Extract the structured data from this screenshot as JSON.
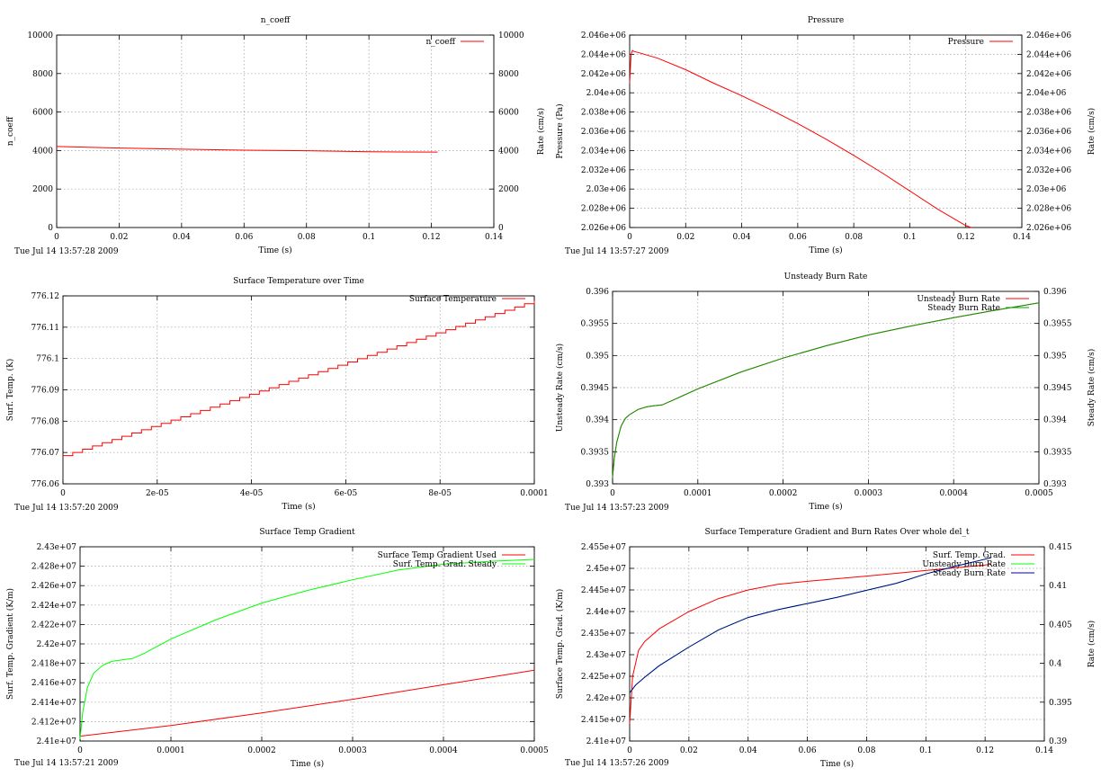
{
  "chart_data": [
    {
      "type": "line",
      "title": "n_coeff",
      "xlabel": "Time (s)",
      "ylabel": "n_coeff",
      "y2label": "Rate (cm/s)",
      "xlim": [
        0,
        0.14
      ],
      "ylim": [
        0,
        10000
      ],
      "y2lim": [
        0,
        10000
      ],
      "xticks": [
        "0",
        "0.02",
        "0.04",
        "0.06",
        "0.08",
        "0.1",
        "0.12",
        "0.14"
      ],
      "yticks": [
        "0",
        "2000",
        "4000",
        "6000",
        "8000",
        "10000"
      ],
      "y2ticks": [
        "0",
        "2000",
        "4000",
        "6000",
        "8000",
        "10000"
      ],
      "grid": true,
      "legend_position": "top-right",
      "timestamp": "Tue Jul 14 13:57:28 2009",
      "series": [
        {
          "name": "n_coeff",
          "color": "#ff0000",
          "axis": "y1",
          "x": [
            0,
            0.01,
            0.02,
            0.04,
            0.06,
            0.08,
            0.1,
            0.11,
            0.122
          ],
          "y": [
            4210,
            4170,
            4130,
            4070,
            4020,
            3990,
            3940,
            3925,
            3920
          ]
        }
      ]
    },
    {
      "type": "line",
      "title": "Pressure",
      "xlabel": "Time (s)",
      "ylabel": "Pressure (Pa)",
      "y2label": "Rate (cm/s)",
      "xlim": [
        0,
        0.14
      ],
      "ylim": [
        2026000,
        2046000
      ],
      "y2lim": [
        2026000,
        2046000
      ],
      "xticks": [
        "0",
        "0.02",
        "0.04",
        "0.06",
        "0.08",
        "0.1",
        "0.12",
        "0.14"
      ],
      "yticks": [
        "2.026e+06",
        "2.028e+06",
        "2.03e+06",
        "2.032e+06",
        "2.034e+06",
        "2.036e+06",
        "2.038e+06",
        "2.04e+06",
        "2.042e+06",
        "2.044e+06",
        "2.046e+06"
      ],
      "y2ticks": [
        "2.026e+06",
        "2.028e+06",
        "2.03e+06",
        "2.032e+06",
        "2.034e+06",
        "2.036e+06",
        "2.038e+06",
        "2.04e+06",
        "2.042e+06",
        "2.044e+06",
        "2.046e+06"
      ],
      "grid": true,
      "legend_position": "top-right",
      "timestamp": "Tue Jul 14 13:57:27 2009",
      "series": [
        {
          "name": "Pressure",
          "color": "#ff0000",
          "axis": "y1",
          "x": [
            0,
            0.0005,
            0.001,
            0.0015,
            0.003,
            0.01,
            0.02,
            0.03,
            0.04,
            0.05,
            0.06,
            0.07,
            0.08,
            0.09,
            0.1,
            0.11,
            0.12,
            0.122
          ],
          "y": [
            2041000,
            2044000,
            2044400,
            2044300,
            2044200,
            2043600,
            2042400,
            2041000,
            2039700,
            2038300,
            2036800,
            2035200,
            2033500,
            2031700,
            2029800,
            2027900,
            2026200,
            2026000
          ]
        }
      ]
    },
    {
      "type": "line",
      "title": "Surface Temperature over Time",
      "xlabel": "Time (s)",
      "ylabel": "Surf. Temp. (K)",
      "xlim": [
        0,
        0.0001
      ],
      "ylim": [
        776.06,
        776.12
      ],
      "xticks": [
        "0",
        "2e-05",
        "4e-05",
        "6e-05",
        "8e-05",
        "0.0001"
      ],
      "yticks": [
        "776.06",
        "776.07",
        "776.08",
        "776.09",
        "776.1",
        "776.11",
        "776.12"
      ],
      "grid": true,
      "legend_position": "top-right",
      "timestamp": "Tue Jul 14 13:57:20 2009",
      "series": [
        {
          "name": "Surface Temperature",
          "color": "#ff0000",
          "axis": "y1",
          "step": true,
          "x": [
            0,
            0.0001
          ],
          "y": [
            776.069,
            776.1185
          ]
        }
      ]
    },
    {
      "type": "line",
      "title": "Unsteady Burn Rate",
      "xlabel": "Time (s)",
      "ylabel": "Unsteady Rate (cm/s)",
      "y2label": "Steady Rate (cm/s)",
      "xlim": [
        0,
        0.0005
      ],
      "ylim": [
        0.393,
        0.396
      ],
      "y2lim": [
        0.393,
        0.396
      ],
      "xticks": [
        "0",
        "0.0001",
        "0.0002",
        "0.0003",
        "0.0004",
        "0.0005"
      ],
      "yticks": [
        "0.393",
        "0.3935",
        "0.394",
        "0.3945",
        "0.395",
        "0.3955",
        "0.396"
      ],
      "y2ticks": [
        "0.393",
        "0.3935",
        "0.394",
        "0.3945",
        "0.395",
        "0.3955",
        "0.396"
      ],
      "grid": true,
      "legend_position": "top-right",
      "timestamp": "Tue Jul 14 13:57:23 2009",
      "series": [
        {
          "name": "Unsteady Burn Rate",
          "color": "#ff0000",
          "axis": "y1",
          "x": [
            0,
            2e-06,
            5e-06,
            1e-05,
            1.5e-05,
            2e-05,
            3e-05,
            4e-05,
            5e-05,
            5.8e-05,
            7e-05,
            0.0001,
            0.00015,
            0.0002,
            0.00025,
            0.0003,
            0.00035,
            0.0004,
            0.00045,
            0.0005
          ],
          "y": [
            0.3931,
            0.3934,
            0.39365,
            0.3939,
            0.39402,
            0.39408,
            0.39416,
            0.3942,
            0.39422,
            0.39423,
            0.3943,
            0.39448,
            0.39474,
            0.39496,
            0.39515,
            0.39532,
            0.39546,
            0.39559,
            0.39571,
            0.39582
          ]
        },
        {
          "name": "Steady Burn Rate",
          "color": "#00a000",
          "axis": "y2",
          "x": [
            0,
            2e-06,
            5e-06,
            1e-05,
            1.5e-05,
            2e-05,
            3e-05,
            4e-05,
            5e-05,
            5.8e-05,
            7e-05,
            0.0001,
            0.00015,
            0.0002,
            0.00025,
            0.0003,
            0.00035,
            0.0004,
            0.00045,
            0.0005
          ],
          "y": [
            0.3931,
            0.3934,
            0.39365,
            0.3939,
            0.39402,
            0.39408,
            0.39416,
            0.3942,
            0.39422,
            0.39423,
            0.3943,
            0.39448,
            0.39474,
            0.39496,
            0.39515,
            0.39532,
            0.39546,
            0.39559,
            0.39571,
            0.39582
          ]
        }
      ]
    },
    {
      "type": "line",
      "title": "Surface Temp Gradient",
      "xlabel": "Time (s)",
      "ylabel": "Surf. Temp. Gradient (K/m)",
      "xlim": [
        0,
        0.0005
      ],
      "ylim": [
        24100000,
        24300000
      ],
      "xticks": [
        "0",
        "0.0001",
        "0.0002",
        "0.0003",
        "0.0004",
        "0.0005"
      ],
      "yticks": [
        "2.41e+07",
        "2.412e+07",
        "2.414e+07",
        "2.416e+07",
        "2.418e+07",
        "2.42e+07",
        "2.422e+07",
        "2.424e+07",
        "2.426e+07",
        "2.428e+07",
        "2.43e+07"
      ],
      "grid": true,
      "legend_position": "top-right",
      "timestamp": "Tue Jul 14 13:57:21 2009",
      "series": [
        {
          "name": "Surface Temp Gradient Used",
          "color": "#ff0000",
          "axis": "y1",
          "x": [
            0,
            0.0001,
            0.0002,
            0.0003,
            0.0004,
            0.0005
          ],
          "y": [
            24105000,
            24116000,
            24129000,
            24143000,
            24158000,
            24173000
          ]
        },
        {
          "name": "Surf. Temp. Grad. Steady",
          "color": "#00ff00",
          "axis": "y1",
          "x": [
            0,
            3e-06,
            8e-06,
            1.5e-05,
            2.5e-05,
            3.5e-05,
            5e-05,
            5.8e-05,
            7e-05,
            0.0001,
            0.00015,
            0.0002,
            0.00025,
            0.0003,
            0.00035,
            0.0004,
            0.00045,
            0.0005
          ],
          "y": [
            24102000,
            24130000,
            24155000,
            24170000,
            24178000,
            24182000,
            24184000,
            24185000,
            24190000,
            24205000,
            24225000,
            24242000,
            24255000,
            24266000,
            24276000,
            24282000,
            24285000,
            24287000
          ]
        }
      ]
    },
    {
      "type": "line",
      "title": "Surface Temperature Gradient and Burn Rates Over whole del_t",
      "xlabel": "Time (s)",
      "ylabel": "Surface Temp. Grad. (K/m)",
      "y2label": "Rate (cm/s)",
      "xlim": [
        0,
        0.14
      ],
      "ylim": [
        24100000,
        24550000
      ],
      "y2lim": [
        0.39,
        0.415
      ],
      "xticks": [
        "0",
        "0.02",
        "0.04",
        "0.06",
        "0.08",
        "0.1",
        "0.12",
        "0.14"
      ],
      "yticks": [
        "2.41e+07",
        "2.415e+07",
        "2.42e+07",
        "2.425e+07",
        "2.43e+07",
        "2.435e+07",
        "2.44e+07",
        "2.445e+07",
        "2.45e+07",
        "2.455e+07"
      ],
      "y2ticks": [
        "0.39",
        "0.395",
        "0.4",
        "0.405",
        "0.41",
        "0.415"
      ],
      "grid": true,
      "legend_position": "top-right",
      "timestamp": "Tue Jul 14 13:57:26 2009",
      "series": [
        {
          "name": "Surf. Temp. Grad.",
          "color": "#ff0000",
          "axis": "y1",
          "x": [
            0,
            0.001,
            0.003,
            0.005,
            0.01,
            0.02,
            0.03,
            0.04,
            0.05,
            0.06,
            0.08,
            0.1,
            0.12,
            0.122
          ],
          "y": [
            24140000,
            24250000,
            24310000,
            24330000,
            24360000,
            24400000,
            24430000,
            24450000,
            24463000,
            24470000,
            24482000,
            24495000,
            24508000,
            24510000
          ]
        },
        {
          "name": "Unsteady Burn Rate",
          "color": "#00ff00",
          "axis": "y2",
          "x": [
            0,
            0.002,
            0.005,
            0.01,
            0.02,
            0.03,
            0.04,
            0.05,
            0.06,
            0.07,
            0.08,
            0.09,
            0.1,
            0.11,
            0.12,
            0.122
          ],
          "y": [
            0.3962,
            0.3972,
            0.3982,
            0.3997,
            0.4021,
            0.4043,
            0.4059,
            0.4069,
            0.4077,
            0.4085,
            0.4094,
            0.4103,
            0.4115,
            0.4125,
            0.4134,
            0.4136
          ]
        },
        {
          "name": "Steady Burn Rate",
          "color": "#0000a0",
          "axis": "y2",
          "x": [
            0,
            0.002,
            0.005,
            0.01,
            0.02,
            0.03,
            0.04,
            0.05,
            0.06,
            0.07,
            0.08,
            0.09,
            0.1,
            0.11,
            0.12,
            0.122
          ],
          "y": [
            0.3962,
            0.3972,
            0.3982,
            0.3997,
            0.4021,
            0.4043,
            0.4059,
            0.4069,
            0.4077,
            0.4085,
            0.4094,
            0.4103,
            0.4115,
            0.4125,
            0.4134,
            0.4136
          ]
        }
      ]
    }
  ]
}
